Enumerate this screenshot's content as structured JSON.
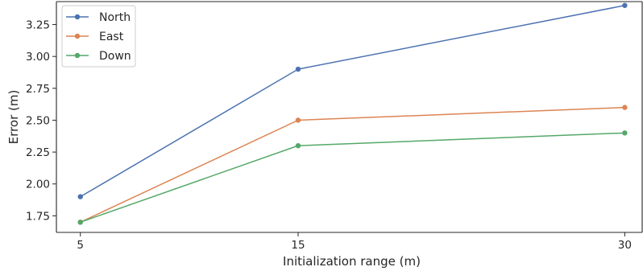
{
  "chart_data": {
    "type": "line",
    "x": [
      5,
      15,
      30
    ],
    "xticks": [
      "5",
      "15",
      "30"
    ],
    "xlabel": "Initialization range (m)",
    "ylabel": "Error (m)",
    "ylim": [
      1.62,
      3.43
    ],
    "yticks": [
      "1.75",
      "2.00",
      "2.25",
      "2.50",
      "2.75",
      "3.00",
      "3.25"
    ],
    "grid": false,
    "legend_position": "top-left",
    "series": [
      {
        "name": "North",
        "color": "#4c72b0",
        "values": [
          1.9,
          2.9,
          3.4
        ]
      },
      {
        "name": "East",
        "color": "#dd8452",
        "values": [
          1.7,
          2.5,
          2.6
        ]
      },
      {
        "name": "Down",
        "color": "#55a868",
        "values": [
          1.7,
          2.3,
          2.4
        ]
      }
    ]
  }
}
